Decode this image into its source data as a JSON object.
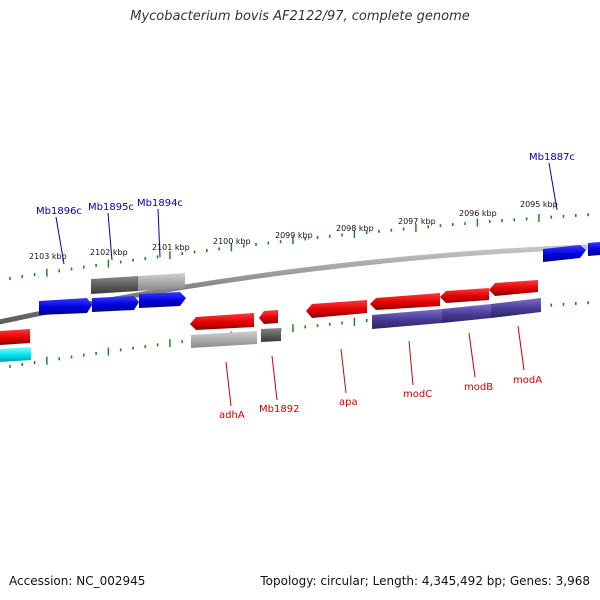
{
  "title": "Mycobacterium bovis AF2122/97, complete genome",
  "footer": {
    "accession": "Accession: NC_002945",
    "summary": "Topology: circular; Length: 4,345,492 bp; Genes: 3,968"
  },
  "scale_labels": [
    "2103 kbp",
    "2102 kbp",
    "2101 kbp",
    "2100 kbp",
    "2099 kbp",
    "2098 kbp",
    "2097 kbp",
    "2096 kbp",
    "2095 kbp"
  ],
  "gene_labels_top": [
    "Mb1896c",
    "Mb1895c",
    "Mb1894c",
    "Mb1887c"
  ],
  "gene_labels_bottom": [
    "adhA",
    "Mb1892",
    "apa",
    "modC",
    "modB",
    "modA"
  ],
  "colors": {
    "forward_cds": "#0000ee",
    "reverse_cds": "#ee0000",
    "gene_top": "#6c6c6c",
    "gene_bottom": "#a8a8a8",
    "operon": "#4b3f9a",
    "rna": "#00e5ee",
    "tick": "#1a8a1a",
    "top_label": "#0000aa",
    "bottom_label": "#cc0000",
    "backbone": "#8a8a8a"
  }
}
